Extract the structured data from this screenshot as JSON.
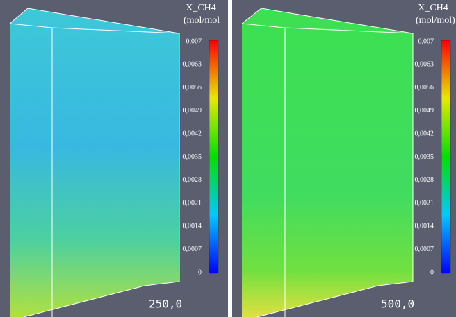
{
  "panels": [
    {
      "colorbar": {
        "title": "X_CH4",
        "unit": "(mol/mol",
        "ticks": [
          "0,007",
          "0,0063",
          "0,0056",
          "0,0049",
          "0,0042",
          "0,0035",
          "0,0028",
          "0,0021",
          "0,0014",
          "0,0007",
          "0"
        ]
      },
      "time": "250,0"
    },
    {
      "colorbar": {
        "title": "X_CH4",
        "unit": "(mol/mol)",
        "ticks": [
          "0,007",
          "0,0063",
          "0,0056",
          "0,0049",
          "0,0042",
          "0,0035",
          "0,0028",
          "0,0021",
          "0,0014",
          "0,0007",
          "0"
        ]
      },
      "time": "500,0"
    }
  ]
}
